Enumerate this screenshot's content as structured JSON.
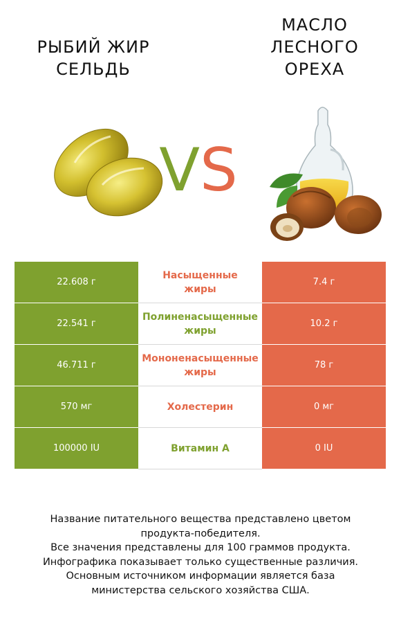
{
  "header": {
    "left_title": "РЫБИЙ ЖИР\nСЕЛЬДЬ",
    "right_title": "МАСЛО\nЛЕСНОГО\nОРЕХА",
    "vs_v": "V",
    "vs_s": "S"
  },
  "colors": {
    "left_accent": "#7fa12f",
    "right_accent": "#e4694a"
  },
  "images": {
    "left": "fish-oil-capsules-icon",
    "right": "hazelnut-oil-bottle-icon"
  },
  "rows": [
    {
      "left": "22.608 г",
      "label_1": "Насыщенные",
      "label_2": "жиры",
      "right": "7.4 г",
      "winner": "right"
    },
    {
      "left": "22.541 г",
      "label_1": "Полиненасыщенные",
      "label_2": "жиры",
      "right": "10.2 г",
      "winner": "left"
    },
    {
      "left": "46.711 г",
      "label_1": "Мононенасыщенные",
      "label_2": "жиры",
      "right": "78 г",
      "winner": "right"
    },
    {
      "left": "570 мг",
      "label_1": "Холестерин",
      "label_2": "",
      "right": "0 мг",
      "winner": "right"
    },
    {
      "left": "100000 IU",
      "label_1": "Витамин A",
      "label_2": "",
      "right": "0 IU",
      "winner": "left"
    }
  ],
  "footer": {
    "line1": "Название питательного вещества представлено цветом",
    "line2": "продукта-победителя.",
    "line3": "Все значения представлены для 100 граммов продукта.",
    "line4": "Инфографика показывает только существенные различия.",
    "line5": "Основным источником информации является база",
    "line6": "министерства сельского хозяйства США."
  }
}
